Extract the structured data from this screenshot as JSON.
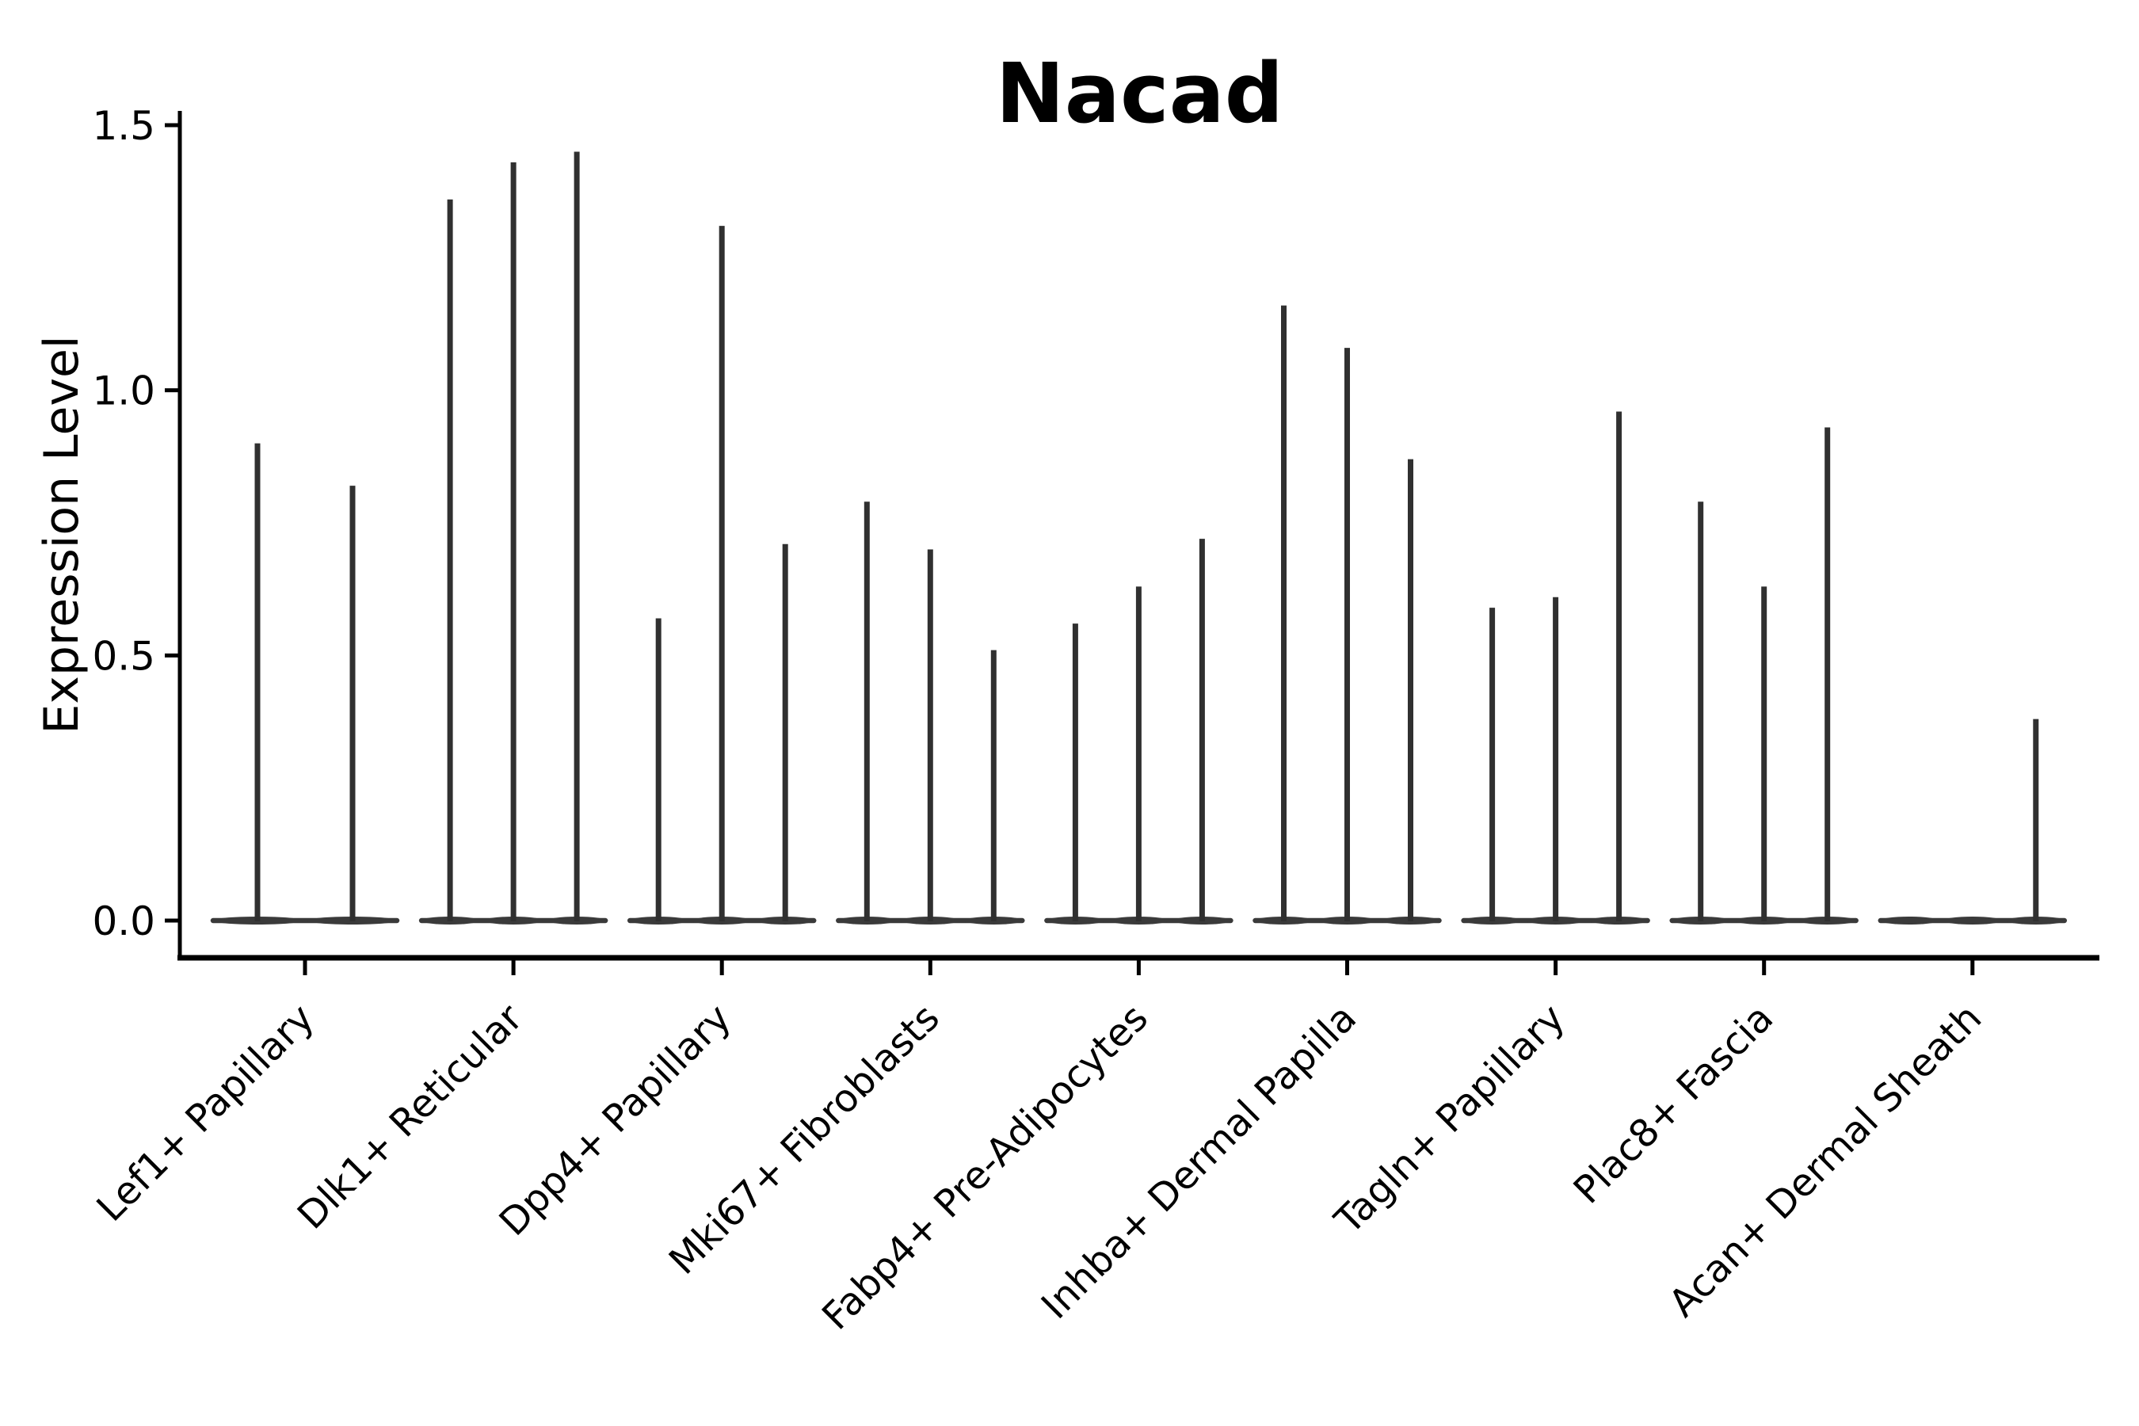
{
  "chart_data": {
    "type": "violin",
    "title": "Nacad",
    "xlabel": "",
    "ylabel": "Expression Level",
    "ylim": [
      0,
      1.5
    ],
    "yticks": [
      "0.0",
      "0.5",
      "1.0",
      "1.5"
    ],
    "ytick_values": [
      0.0,
      0.5,
      1.0,
      1.5
    ],
    "grid": false,
    "legend": "none",
    "description": "Single-cell expression violin plot; each category shows thin violin spikes (max expression) rising from flat zero-density bodies at baseline 0.",
    "categories": [
      "Lef1+ Papillary",
      "Dlk1+ Reticular",
      "Dpp4+ Papillary",
      "Mki67+ Fibroblasts",
      "Fabp4+ Pre-Adipocytes",
      "Inhba+ Dermal Papilla",
      "Tagln+ Papillary",
      "Plac8+ Fascia",
      "Acan+ Dermal Sheath"
    ],
    "groups": [
      {
        "category": "Lef1+ Papillary",
        "violin_max_values": [
          0.9,
          0.82
        ]
      },
      {
        "category": "Dlk1+ Reticular",
        "violin_max_values": [
          1.36,
          1.43,
          1.45
        ]
      },
      {
        "category": "Dpp4+ Papillary",
        "violin_max_values": [
          0.57,
          1.31,
          0.71
        ]
      },
      {
        "category": "Mki67+ Fibroblasts",
        "violin_max_values": [
          0.79,
          0.7,
          0.51
        ]
      },
      {
        "category": "Fabp4+ Pre-Adipocytes",
        "violin_max_values": [
          0.56,
          0.63,
          0.72
        ]
      },
      {
        "category": "Inhba+ Dermal Papilla",
        "violin_max_values": [
          1.16,
          1.08,
          0.87
        ]
      },
      {
        "category": "Tagln+ Papillary",
        "violin_max_values": [
          0.59,
          0.61,
          0.96
        ]
      },
      {
        "category": "Plac8+ Fascia",
        "violin_max_values": [
          0.79,
          0.63,
          0.93
        ]
      },
      {
        "category": "Acan+ Dermal Sheath",
        "violin_max_values": [
          0.0,
          0.0,
          0.38
        ]
      }
    ],
    "colors": {
      "violin_fill": "#3a3a3a",
      "spike_stroke": "#303030",
      "axis": "#000000",
      "text": "#000000",
      "background": "#ffffff"
    }
  }
}
